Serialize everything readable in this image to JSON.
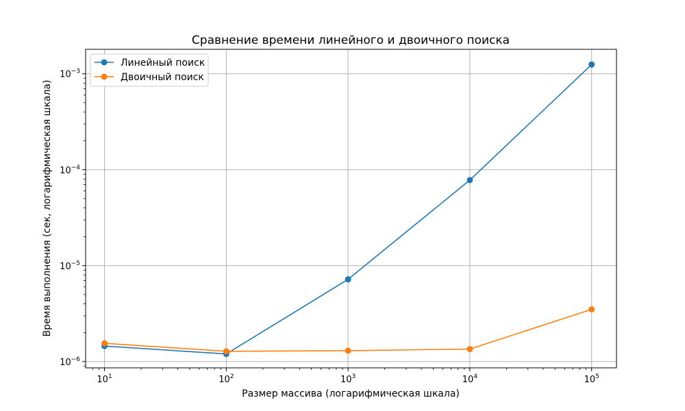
{
  "chart_data": {
    "type": "line",
    "title": "Сравнение времени линейного и двоичного поиска",
    "xlabel": "Размер массива (логарифмическая шкала)",
    "ylabel": "Время выполнения (сек, логарифмическая шкала)",
    "xscale": "log",
    "yscale": "log",
    "xlim": [
      7,
      160000
    ],
    "ylim": [
      8.6e-07,
      0.0018
    ],
    "grid": true,
    "legend_position": "upper left",
    "x_ticks": [
      {
        "value": 10,
        "base": "10",
        "exp": "1"
      },
      {
        "value": 100,
        "base": "10",
        "exp": "2"
      },
      {
        "value": 1000,
        "base": "10",
        "exp": "3"
      },
      {
        "value": 10000,
        "base": "10",
        "exp": "4"
      },
      {
        "value": 100000,
        "base": "10",
        "exp": "5"
      }
    ],
    "y_ticks": [
      {
        "value": 1e-06,
        "base": "10",
        "exp": "−6"
      },
      {
        "value": 1e-05,
        "base": "10",
        "exp": "−5"
      },
      {
        "value": 0.0001,
        "base": "10",
        "exp": "−4"
      },
      {
        "value": 0.001,
        "base": "10",
        "exp": "−3"
      }
    ],
    "x": [
      10,
      100,
      1000,
      10000,
      100000
    ],
    "series": [
      {
        "name": "Линейный поиск",
        "color": "#1f77b4",
        "values": [
          1.45e-06,
          1.2e-06,
          7.2e-06,
          7.8e-05,
          0.00125
        ]
      },
      {
        "name": "Двоичный поиск",
        "color": "#ff7f0e",
        "values": [
          1.55e-06,
          1.28e-06,
          1.3e-06,
          1.35e-06,
          3.5e-06
        ]
      }
    ]
  }
}
